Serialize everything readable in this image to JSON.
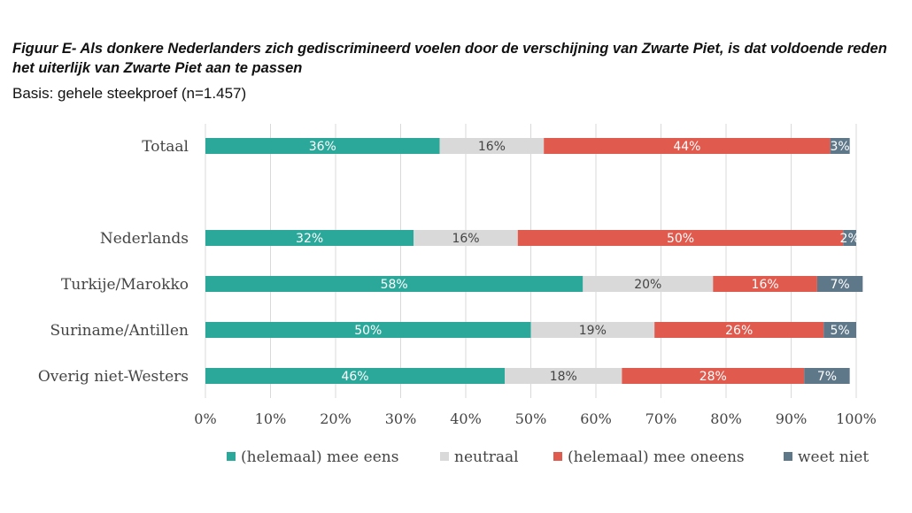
{
  "chart_data": {
    "type": "bar",
    "orientation": "horizontal",
    "stacked": true,
    "title": "Figuur E- Als donkere Nederlanders zich gediscrimineerd voelen door de verschijning van Zwarte Piet, is dat voldoende reden het uiterlijk van Zwarte Piet aan te passen",
    "subtitle": "Basis: gehele steekproef (n=1.457)",
    "categories": [
      "Totaal",
      "",
      "Nederlands",
      "Turkije/Marokko",
      "Suriname/Antillen",
      "Overig niet-Westers"
    ],
    "series": [
      {
        "name": "(helemaal) mee eens",
        "color": "#2ba89a",
        "label_color": "#ffffff",
        "values": [
          36,
          null,
          32,
          58,
          50,
          46
        ],
        "labels": [
          "36%",
          "",
          "32%",
          "58%",
          "50%",
          "46%"
        ]
      },
      {
        "name": "neutraal",
        "color": "#d9d9d9",
        "label_color": "#444444",
        "values": [
          16,
          null,
          16,
          20,
          19,
          18
        ],
        "labels": [
          "16%",
          "",
          "16%",
          "20%",
          "19%",
          "18%"
        ]
      },
      {
        "name": "(helemaal) mee oneens",
        "color": "#e05a4e",
        "label_color": "#ffffff",
        "values": [
          44,
          null,
          50,
          16,
          26,
          28
        ],
        "labels": [
          "44%",
          "",
          "50%",
          "16%",
          "26%",
          "28%"
        ]
      },
      {
        "name": "weet niet",
        "color": "#5f7889",
        "label_color": "#ffffff",
        "values": [
          3,
          null,
          2,
          7,
          5,
          7
        ],
        "labels": [
          "3%",
          "",
          "2%",
          "7%",
          "5%",
          "7%"
        ]
      }
    ],
    "xlim": [
      0,
      100
    ],
    "xticks": [
      "0%",
      "10%",
      "20%",
      "30%",
      "40%",
      "50%",
      "60%",
      "70%",
      "80%",
      "90%",
      "100%"
    ],
    "grid": true,
    "legend_position": "bottom"
  }
}
